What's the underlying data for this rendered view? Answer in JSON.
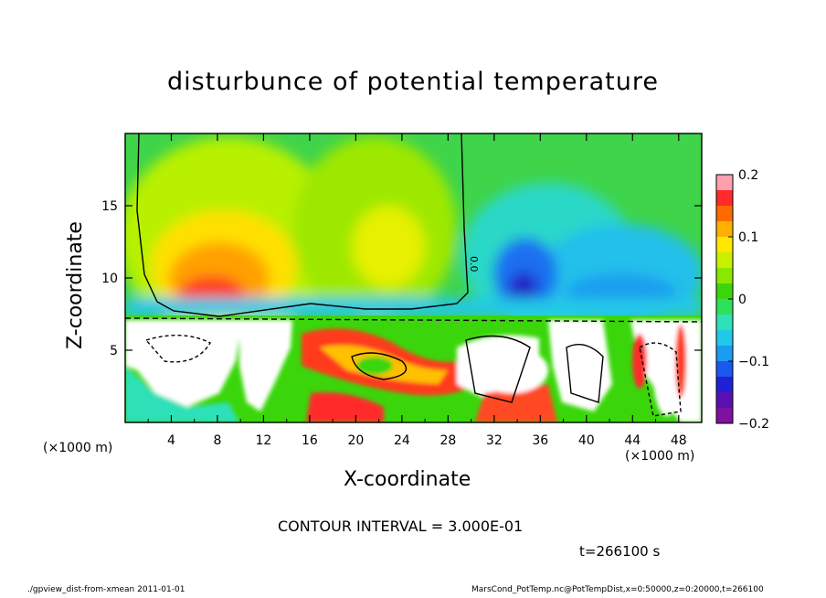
{
  "chart_data": {
    "type": "heatmap",
    "title": "disturbunce of potential temperature",
    "xlabel": "X-coordinate",
    "ylabel": "Z-coordinate",
    "x_unit_label": "(×1000 m)",
    "xlim": [
      0,
      50
    ],
    "ylim": [
      0,
      20
    ],
    "x_ticks": [
      4,
      8,
      12,
      16,
      20,
      24,
      28,
      32,
      36,
      40,
      44,
      48
    ],
    "y_ticks": [
      5,
      10,
      15
    ],
    "colorbar": {
      "range": [
        -0.2,
        0.2
      ],
      "ticks": [
        "0.2",
        "0.1",
        "0",
        "−0.1",
        "−0.2"
      ],
      "tick_values": [
        0.2,
        0.1,
        0,
        -0.1,
        -0.2
      ],
      "colors": [
        "#ff9fb0",
        "#ff2a2a",
        "#ff6a00",
        "#ffb000",
        "#ffe800",
        "#c8f000",
        "#8ae800",
        "#3ad60b",
        "#2fe05a",
        "#2fe0b8",
        "#22c8e8",
        "#1a9cf0",
        "#1a58f0",
        "#2020d8",
        "#5a10b0",
        "#8010a0"
      ]
    },
    "contour_label": "0.0",
    "contour_interval": "CONTOUR INTERVAL = 3.000E-01",
    "time": "t=266100 s",
    "footer_left": "./gpview_dist-from-xmean   2011-01-01",
    "footer_right": "MarsCond_PotTemp.nc@PotTempDist,x=0:50000,z=0:20000,t=266100"
  }
}
